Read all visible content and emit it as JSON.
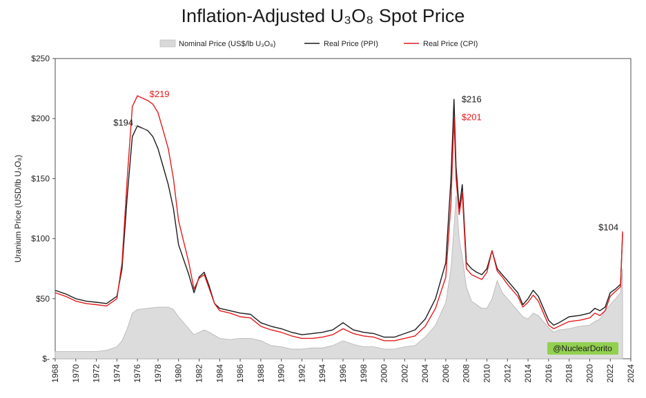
{
  "chart_data": {
    "type": "line",
    "title": "Inflation-Adjusted U₃O₈ Spot Price",
    "ylabel": "Uranium Price (USD/lb U₃O₈)",
    "xlabel": "",
    "xlim": [
      1968,
      2024
    ],
    "ylim": [
      0,
      250
    ],
    "y_ticks": [
      0,
      50,
      100,
      150,
      200,
      250
    ],
    "y_tick_labels": [
      "$-",
      "$50",
      "$100",
      "$150",
      "$200",
      "$250"
    ],
    "x_ticks": [
      1968,
      1970,
      1972,
      1974,
      1976,
      1978,
      1980,
      1982,
      1984,
      1986,
      1988,
      1990,
      1992,
      1994,
      1996,
      1998,
      2000,
      2002,
      2004,
      2006,
      2008,
      2010,
      2012,
      2014,
      2016,
      2018,
      2020,
      2022,
      2024
    ],
    "x_tick_labels": [
      "1968",
      "1970",
      "1972",
      "1974",
      "1976",
      "1978",
      "1980",
      "1982",
      "1984",
      "1986",
      "1988",
      "1990",
      "1992",
      "1994",
      "1996",
      "1998",
      "2000",
      "2002",
      "2004",
      "2006",
      "2008",
      "2010",
      "2012",
      "2014",
      "2016",
      "2018",
      "2020",
      "2022",
      "2024"
    ],
    "grid": false,
    "legend_position": "top-center",
    "series": [
      {
        "name": "Nominal Price (US$/lb U₃O₈)",
        "style": "area",
        "color": "#d9d9d9",
        "x": [
          1968,
          1969,
          1970,
          1971,
          1972,
          1973,
          1974,
          1974.5,
          1975,
          1975.5,
          1976,
          1977,
          1978,
          1979,
          1979.5,
          1980,
          1981,
          1981.5,
          1982,
          1982.5,
          1983,
          1984,
          1985,
          1986,
          1987,
          1988,
          1989,
          1990,
          1991,
          1992,
          1993,
          1994,
          1995,
          1996,
          1997,
          1998,
          1999,
          2000,
          2001,
          2002,
          2003,
          2004,
          2005,
          2006,
          2006.5,
          2006.8,
          2007,
          2007.3,
          2007.6,
          2008,
          2008.5,
          2009,
          2009.5,
          2010,
          2010.5,
          2011,
          2011.5,
          2012,
          2013,
          2013.5,
          2014,
          2014.5,
          2015,
          2016,
          2016.5,
          2017,
          2018,
          2019,
          2020,
          2020.5,
          2021,
          2021.5,
          2022,
          2022.5,
          2023,
          2023.2
        ],
        "values": [
          6,
          6,
          6,
          6,
          6,
          7,
          10,
          15,
          25,
          38,
          41,
          42,
          43,
          43,
          41,
          35,
          25,
          20,
          22,
          24,
          22,
          17,
          16,
          17,
          17,
          15,
          11,
          10,
          8,
          8,
          9,
          9,
          11,
          15,
          12,
          10,
          10,
          8,
          8,
          10,
          11,
          18,
          28,
          47,
          75,
          110,
          136,
          100,
          85,
          60,
          48,
          45,
          42,
          42,
          50,
          65,
          55,
          50,
          40,
          35,
          33,
          38,
          36,
          26,
          22,
          24,
          25,
          27,
          28,
          31,
          33,
          40,
          45,
          50,
          55,
          75
        ]
      },
      {
        "name": "Real Price (PPI)",
        "style": "line",
        "color": "#1a1a1a",
        "x": [
          1968,
          1969,
          1970,
          1971,
          1972,
          1973,
          1974,
          1974.5,
          1975,
          1975.5,
          1976,
          1977,
          1977.5,
          1978,
          1978.5,
          1979,
          1979.5,
          1980,
          1981,
          1981.5,
          1982,
          1982.5,
          1983,
          1983.5,
          1984,
          1985,
          1986,
          1987,
          1988,
          1989,
          1990,
          1991,
          1992,
          1993,
          1994,
          1995,
          1996,
          1997,
          1998,
          1999,
          2000,
          2001,
          2002,
          2003,
          2004,
          2005,
          2006,
          2006.5,
          2006.8,
          2007,
          2007.3,
          2007.6,
          2008,
          2008.5,
          2009,
          2009.5,
          2010,
          2010.5,
          2011,
          2011.5,
          2012,
          2013,
          2013.5,
          2014,
          2014.5,
          2015,
          2016,
          2016.5,
          2017,
          2018,
          2019,
          2020,
          2020.5,
          2021,
          2021.5,
          2022,
          2022.5,
          2023,
          2023.2
        ],
        "values": [
          57,
          54,
          50,
          48,
          47,
          46,
          52,
          75,
          135,
          185,
          194,
          190,
          185,
          175,
          160,
          145,
          125,
          95,
          70,
          55,
          68,
          72,
          60,
          46,
          42,
          40,
          38,
          37,
          30,
          27,
          25,
          22,
          20,
          21,
          22,
          24,
          30,
          24,
          22,
          21,
          18,
          18,
          21,
          24,
          33,
          50,
          80,
          150,
          216,
          160,
          125,
          145,
          80,
          75,
          72,
          70,
          75,
          90,
          75,
          70,
          65,
          55,
          45,
          50,
          57,
          52,
          32,
          28,
          30,
          35,
          36,
          38,
          42,
          40,
          43,
          55,
          58,
          62,
          104
        ]
      },
      {
        "name": "Real Price (CPI)",
        "style": "line",
        "color": "#e31a1c",
        "x": [
          1968,
          1969,
          1970,
          1971,
          1972,
          1973,
          1974,
          1974.5,
          1975,
          1975.5,
          1976,
          1977,
          1977.5,
          1978,
          1978.5,
          1979,
          1979.5,
          1980,
          1981,
          1981.5,
          1982,
          1982.5,
          1983,
          1983.5,
          1984,
          1985,
          1986,
          1987,
          1988,
          1989,
          1990,
          1991,
          1992,
          1993,
          1994,
          1995,
          1996,
          1997,
          1998,
          1999,
          2000,
          2001,
          2002,
          2003,
          2004,
          2005,
          2006,
          2006.5,
          2006.8,
          2007,
          2007.3,
          2007.6,
          2008,
          2008.5,
          2009,
          2009.5,
          2010,
          2010.5,
          2011,
          2011.5,
          2012,
          2013,
          2013.5,
          2014,
          2014.5,
          2015,
          2016,
          2016.5,
          2017,
          2018,
          2019,
          2020,
          2020.5,
          2021,
          2021.5,
          2022,
          2022.5,
          2023,
          2023.2
        ],
        "values": [
          55,
          52,
          48,
          46,
          45,
          44,
          50,
          80,
          150,
          210,
          219,
          215,
          212,
          205,
          190,
          175,
          150,
          115,
          80,
          58,
          67,
          70,
          58,
          46,
          40,
          38,
          35,
          34,
          27,
          24,
          22,
          19,
          17,
          17,
          18,
          20,
          25,
          21,
          19,
          18,
          15,
          15,
          17,
          19,
          27,
          42,
          68,
          130,
          201,
          150,
          120,
          138,
          75,
          70,
          68,
          66,
          72,
          90,
          73,
          68,
          62,
          52,
          43,
          47,
          53,
          48,
          28,
          25,
          27,
          31,
          32,
          34,
          38,
          36,
          40,
          52,
          56,
          60,
          106
        ]
      }
    ],
    "annotations": [
      {
        "label": "$219",
        "x": 1976.3,
        "y": 219,
        "color": "#e31a1c"
      },
      {
        "label": "$194",
        "x": 1976,
        "y": 194,
        "color": "#1a1a1a"
      },
      {
        "label": "$216",
        "x": 2007,
        "y": 216,
        "color": "#1a1a1a"
      },
      {
        "label": "$201",
        "x": 2007,
        "y": 201,
        "color": "#e31a1c"
      },
      {
        "label": "$104",
        "x": 2023.2,
        "y": 104,
        "color": "#1a1a1a"
      }
    ],
    "watermark": "@NuclearDorito"
  }
}
